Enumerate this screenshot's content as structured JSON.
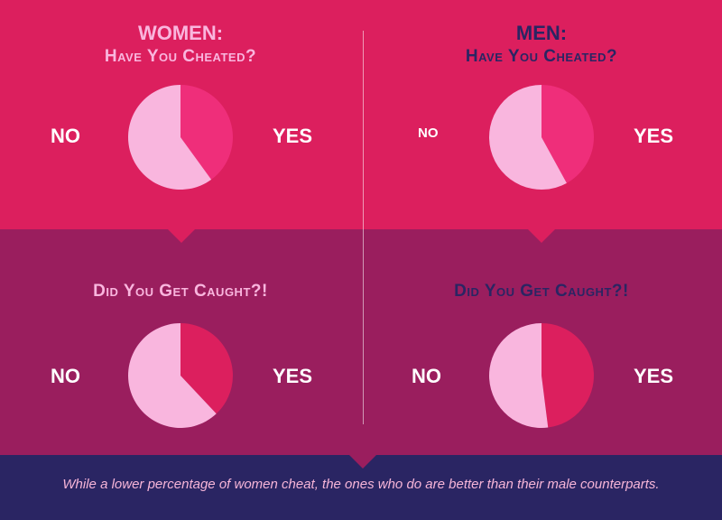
{
  "colors": {
    "top_band": "#dc1f5e",
    "middle_band": "#9a1e5e",
    "bottom_band": "#2a2563",
    "light_pink": "#f9b6de",
    "navy": "#2a2563"
  },
  "women": {
    "header": "WOMEN:",
    "subheader": "Have You Cheated?",
    "caught_question": "Did You Get Caught?!"
  },
  "men": {
    "header": "MEN:",
    "subheader": "Have You Cheated?",
    "caught_question": "Did You Get Caught?!"
  },
  "labels": {
    "no": "NO",
    "yes": "YES"
  },
  "footer": "While a lower percentage of women cheat, the ones who do are better than their male counterparts.",
  "chart_data": [
    {
      "type": "pie",
      "title": "WOMEN: Have You Cheated?",
      "categories": [
        "NO",
        "YES"
      ],
      "values": [
        60,
        40
      ],
      "colors": [
        "#f9b6de",
        "#ef2e7a"
      ]
    },
    {
      "type": "pie",
      "title": "MEN: Have You Cheated?",
      "categories": [
        "NO",
        "YES"
      ],
      "values": [
        58,
        42
      ],
      "colors": [
        "#f9b6de",
        "#ef2e7a"
      ]
    },
    {
      "type": "pie",
      "title": "WOMEN: Did You Get Caught?!",
      "categories": [
        "NO",
        "YES"
      ],
      "values": [
        62,
        38
      ],
      "colors": [
        "#f9b6de",
        "#dc1f5e"
      ]
    },
    {
      "type": "pie",
      "title": "MEN: Did You Get Caught?!",
      "categories": [
        "NO",
        "YES"
      ],
      "values": [
        52,
        48
      ],
      "colors": [
        "#f9b6de",
        "#dc1f5e"
      ]
    }
  ]
}
